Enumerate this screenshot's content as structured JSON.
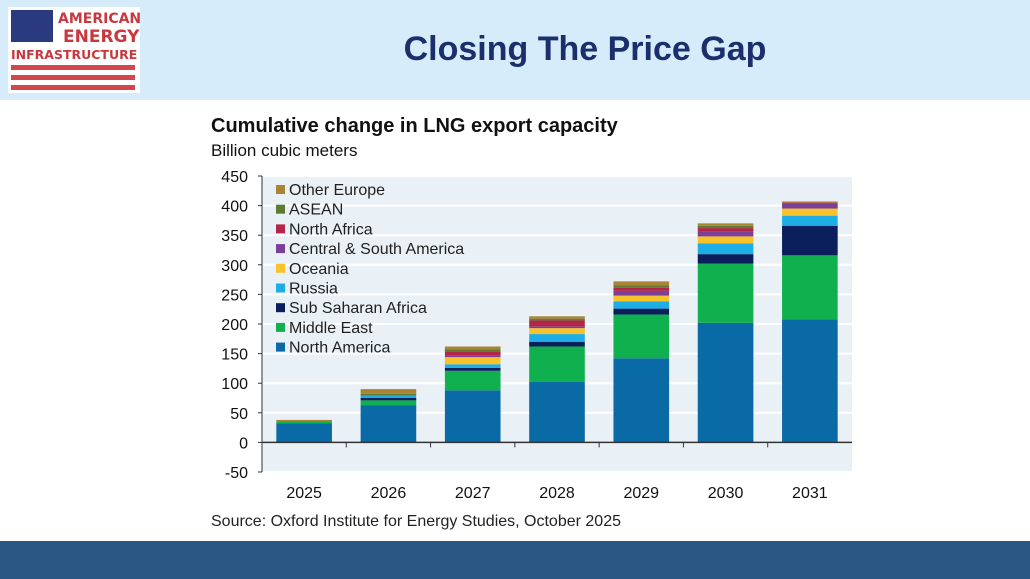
{
  "header": {
    "title": "Closing The Price Gap",
    "logo_text": [
      "AMERICAN",
      "ENERGY",
      "INFRASTRUCTURE"
    ]
  },
  "chart_data": {
    "type": "bar",
    "stacked": true,
    "title": "Cumulative change in LNG export capacity",
    "ylabel": "Billion cubic meters",
    "source": "Source: Oxford Institute for Energy Studies, October 2025",
    "categories": [
      "2025",
      "2026",
      "2027",
      "2028",
      "2029",
      "2030",
      "2031"
    ],
    "ylim": [
      -50,
      450
    ],
    "yticks": [
      -50,
      0,
      50,
      100,
      150,
      200,
      250,
      300,
      350,
      400,
      450
    ],
    "legend_position": "top-left",
    "series": [
      {
        "name": "North America",
        "color": "#0a6aa6",
        "values": [
          32,
          63,
          88,
          102,
          142,
          202,
          208
        ]
      },
      {
        "name": "Middle East",
        "color": "#10b04f",
        "values": [
          4,
          8,
          33,
          60,
          74,
          100,
          108
        ]
      },
      {
        "name": "Sub Saharan Africa",
        "color": "#0b1f5c",
        "values": [
          0,
          4,
          5,
          8,
          10,
          16,
          50
        ]
      },
      {
        "name": "Russia",
        "color": "#1eaee6",
        "values": [
          0,
          4,
          6,
          13,
          12,
          18,
          17
        ]
      },
      {
        "name": "Oceania",
        "color": "#f7c22a",
        "values": [
          0,
          0,
          12,
          10,
          10,
          12,
          12
        ]
      },
      {
        "name": "Central & South America",
        "color": "#7b3f99",
        "values": [
          0,
          0,
          3,
          3,
          8,
          8,
          8
        ]
      },
      {
        "name": "North Africa",
        "color": "#b3264a",
        "values": [
          0,
          0,
          7,
          10,
          5,
          6,
          2
        ]
      },
      {
        "name": "ASEAN",
        "color": "#5f7a33",
        "values": [
          0,
          3,
          3,
          3,
          4,
          4,
          0
        ]
      },
      {
        "name": "Other Europe",
        "color": "#a88434",
        "values": [
          2,
          8,
          5,
          4,
          7,
          4,
          2
        ]
      }
    ]
  }
}
